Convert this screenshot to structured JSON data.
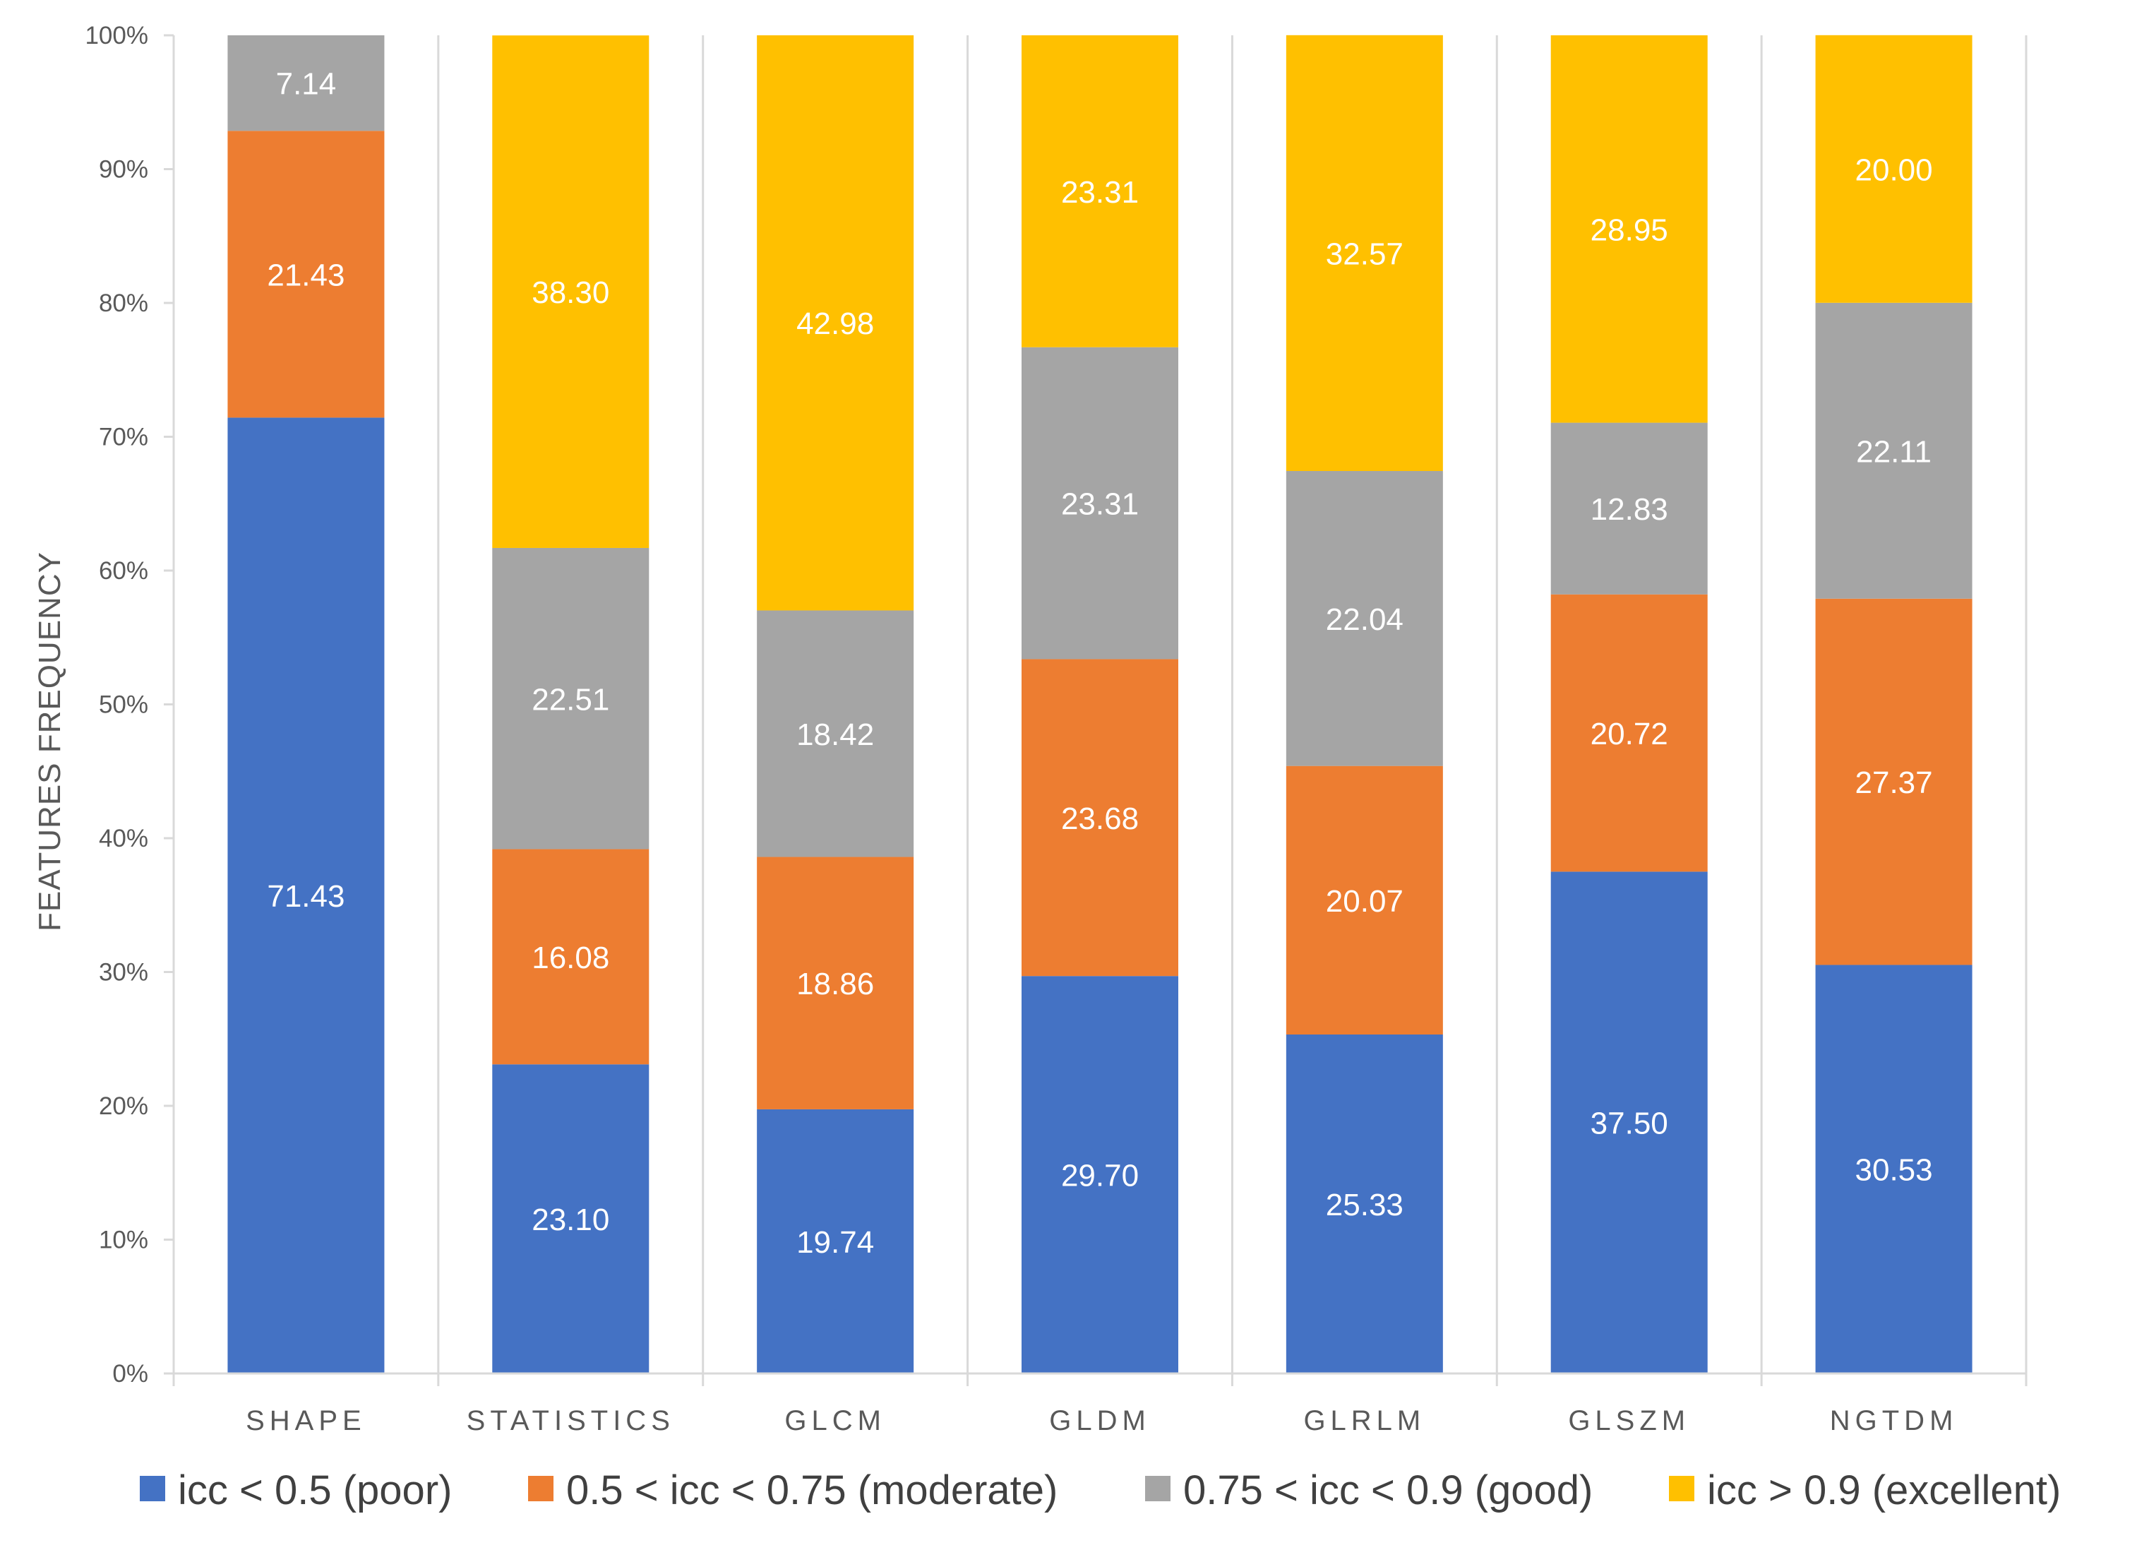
{
  "chart_data": {
    "type": "bar",
    "stacked": true,
    "percent_stacked": true,
    "title": "",
    "xlabel": "",
    "ylabel": "FEATURES FREQUENCY",
    "ylim": [
      0,
      100
    ],
    "yticks": [
      "0%",
      "10%",
      "20%",
      "30%",
      "40%",
      "50%",
      "60%",
      "70%",
      "80%",
      "90%",
      "100%"
    ],
    "categories": [
      "SHAPE",
      "STATISTICS",
      "GLCM",
      "GLDM",
      "GLRLM",
      "GLSZM",
      "NGTDM"
    ],
    "series": [
      {
        "name": "icc < 0.5 (poor)",
        "color": "#4472C4",
        "values": [
          71.43,
          23.1,
          19.74,
          29.7,
          25.33,
          37.5,
          30.53
        ],
        "labels": [
          "71.43",
          "23.10",
          "19.74",
          "29.70",
          "25.33",
          "37.50",
          "30.53"
        ]
      },
      {
        "name": "0.5 < icc < 0.75 (moderate)",
        "color": "#ED7D31",
        "values": [
          21.43,
          16.08,
          18.86,
          23.68,
          20.07,
          20.72,
          27.37
        ],
        "labels": [
          "21.43",
          "16.08",
          "18.86",
          "23.68",
          "20.07",
          "20.72",
          "27.37"
        ]
      },
      {
        "name": "0.75 < icc < 0.9 (good)",
        "color": "#A5A5A5",
        "values": [
          7.14,
          22.51,
          18.42,
          23.31,
          22.04,
          12.83,
          22.11
        ],
        "labels": [
          "7.14",
          "22.51",
          "18.42",
          "23.31",
          "22.04",
          "12.83",
          "22.11"
        ]
      },
      {
        "name": "icc > 0.9 (excellent)",
        "color": "#FFC000",
        "values": [
          0,
          38.3,
          42.98,
          23.31,
          32.57,
          28.95,
          20.0
        ],
        "labels": [
          "",
          "38.30",
          "42.98",
          "23.31",
          "32.57",
          "28.95",
          "20.00"
        ]
      }
    ],
    "grid": "vertical category separators",
    "legend": "bottom"
  }
}
